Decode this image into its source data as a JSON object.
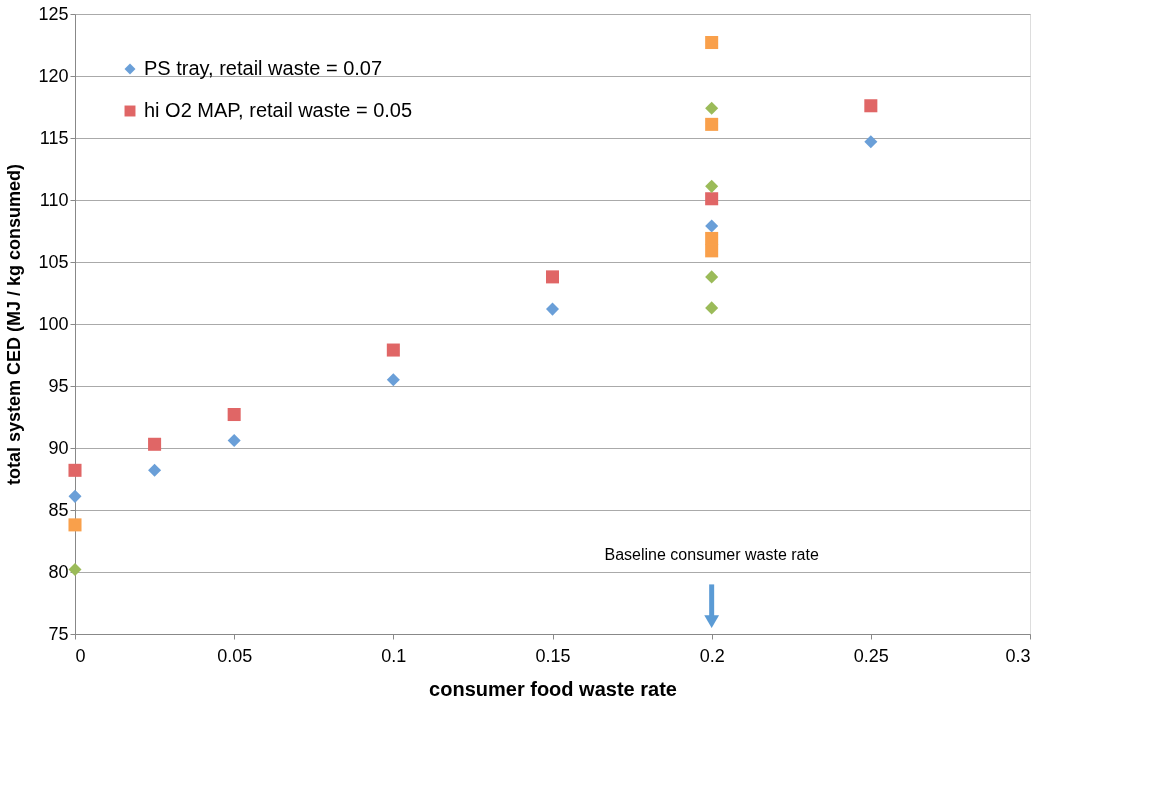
{
  "chart_data": {
    "type": "scatter",
    "xlabel": "consumer food waste rate",
    "ylabel": "total system CED (MJ / kg consumed)",
    "xlim": [
      0,
      0.3
    ],
    "xticks": [
      0,
      0.05,
      0.1,
      0.15,
      0.2,
      0.25,
      0.3
    ],
    "ylim": [
      75,
      125
    ],
    "yticks": [
      75,
      80,
      85,
      90,
      95,
      100,
      105,
      110,
      115,
      120,
      125
    ],
    "grid": "y",
    "legend": "top left",
    "annotations": [
      "Baseline consumer waste rate"
    ],
    "series": [
      {
        "name": "PS tray, retail waste = 0.07",
        "color": "#6a9fd8",
        "marker": "diamond",
        "x": [
          0,
          0.025,
          0.05,
          0.1,
          0.15,
          0.2,
          0.25
        ],
        "values": [
          86.1,
          88.2,
          90.6,
          95.5,
          101.2,
          107.9,
          114.7
        ]
      },
      {
        "name": "hi O2 MAP, retail waste = 0.05",
        "color": "#e06666",
        "marker": "square",
        "x": [
          0,
          0.025,
          0.05,
          0.1,
          0.15,
          0.2,
          0.25
        ],
        "values": [
          88.2,
          90.3,
          92.7,
          97.9,
          103.8,
          110.1,
          117.6
        ]
      },
      {
        "color": "#9bbb59",
        "marker": "diamond",
        "x": [
          0,
          0.2,
          0.2,
          0.2,
          0.2
        ],
        "values": [
          80.2,
          117.4,
          111.1,
          103.8,
          101.3
        ]
      },
      {
        "color": "#f9a04b",
        "marker": "square",
        "x": [
          0,
          0.2,
          0.2,
          0.2,
          0.2
        ],
        "values": [
          83.8,
          122.7,
          116.1,
          106.9,
          105.9
        ]
      }
    ]
  }
}
